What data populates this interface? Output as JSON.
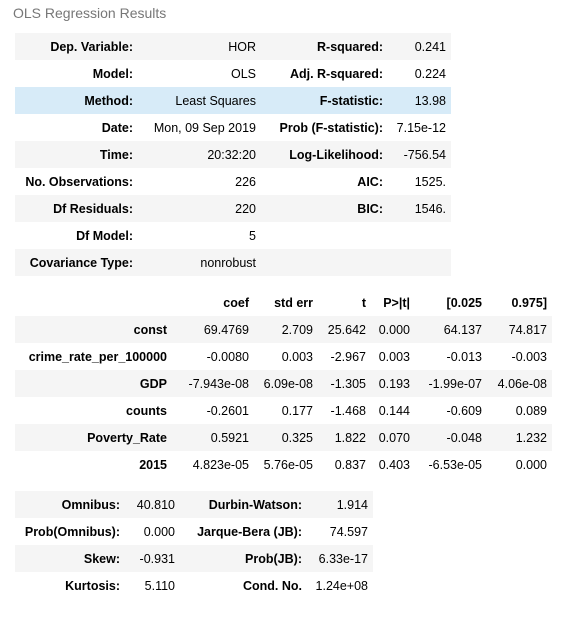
{
  "caption": "OLS Regression Results",
  "summary": {
    "rows": [
      {
        "l1": "Dep. Variable:",
        "v1": "HOR",
        "l2": "R-squared:",
        "v2": "0.241"
      },
      {
        "l1": "Model:",
        "v1": "OLS",
        "l2": "Adj. R-squared:",
        "v2": "0.224"
      },
      {
        "l1": "Method:",
        "v1": "Least Squares",
        "l2": "F-statistic:",
        "v2": "13.98"
      },
      {
        "l1": "Date:",
        "v1": "Mon, 09 Sep 2019",
        "l2": "Prob (F-statistic):",
        "v2": "7.15e-12"
      },
      {
        "l1": "Time:",
        "v1": "20:32:20",
        "l2": "Log-Likelihood:",
        "v2": "-756.54"
      },
      {
        "l1": "No. Observations:",
        "v1": "226",
        "l2": "AIC:",
        "v2": "1525."
      },
      {
        "l1": "Df Residuals:",
        "v1": "220",
        "l2": "BIC:",
        "v2": "1546."
      },
      {
        "l1": "Df Model:",
        "v1": "5",
        "l2": "",
        "v2": ""
      },
      {
        "l1": "Covariance Type:",
        "v1": "nonrobust",
        "l2": "",
        "v2": ""
      }
    ]
  },
  "coefficients": {
    "headers": [
      "",
      "coef",
      "std err",
      "t",
      "P>|t|",
      "[0.025",
      "0.975]"
    ],
    "rows": [
      {
        "name": "const",
        "coef": "69.4769",
        "std_err": "2.709",
        "t": "25.642",
        "p": "0.000",
        "lo": "64.137",
        "hi": "74.817"
      },
      {
        "name": "crime_rate_per_100000",
        "coef": "-0.0080",
        "std_err": "0.003",
        "t": "-2.967",
        "p": "0.003",
        "lo": "-0.013",
        "hi": "-0.003"
      },
      {
        "name": "GDP",
        "coef": "-7.943e-08",
        "std_err": "6.09e-08",
        "t": "-1.305",
        "p": "0.193",
        "lo": "-1.99e-07",
        "hi": "4.06e-08"
      },
      {
        "name": "counts",
        "coef": "-0.2601",
        "std_err": "0.177",
        "t": "-1.468",
        "p": "0.144",
        "lo": "-0.609",
        "hi": "0.089"
      },
      {
        "name": "Poverty_Rate",
        "coef": "0.5921",
        "std_err": "0.325",
        "t": "1.822",
        "p": "0.070",
        "lo": "-0.048",
        "hi": "1.232"
      },
      {
        "name": "2015",
        "coef": "4.823e-05",
        "std_err": "5.76e-05",
        "t": "0.837",
        "p": "0.403",
        "lo": "-6.53e-05",
        "hi": "0.000"
      }
    ]
  },
  "diagnostics": {
    "rows": [
      {
        "l1": "Omnibus:",
        "v1": "40.810",
        "l2": "Durbin-Watson:",
        "v2": "1.914"
      },
      {
        "l1": "Prob(Omnibus):",
        "v1": "0.000",
        "l2": "Jarque-Bera (JB):",
        "v2": "74.597"
      },
      {
        "l1": "Skew:",
        "v1": "-0.931",
        "l2": "Prob(JB):",
        "v2": "6.33e-17"
      },
      {
        "l1": "Kurtosis:",
        "v1": "5.110",
        "l2": "Cond. No.",
        "v2": "1.24e+08"
      }
    ]
  },
  "colors": {
    "row_alt": "#f5f5f5",
    "row_highlight": "#d7ebf8",
    "caption": "#777777"
  }
}
